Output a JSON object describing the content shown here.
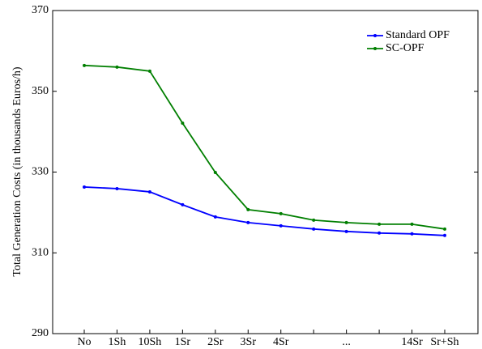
{
  "chart_data": {
    "type": "line",
    "y_label": "Total Generation Costs (in thousands Euros/h)",
    "categories": [
      "No",
      "1Sh",
      "10Sh",
      "1Sr",
      "2Sr",
      "3Sr",
      "4Sr",
      null,
      "...",
      null,
      "14Sr",
      "Sr+Sh"
    ],
    "series": [
      {
        "name": "Standard OPF",
        "color": "#0000ff",
        "values": [
          326.3,
          325.9,
          325.1,
          321.9,
          318.9,
          317.5,
          316.7,
          315.9,
          315.3,
          314.9,
          314.7,
          314.3
        ]
      },
      {
        "name": "SC-OPF",
        "color": "#007f00",
        "values": [
          356.4,
          356.0,
          355.0,
          342.1,
          329.9,
          320.7,
          319.7,
          318.1,
          317.5,
          317.1,
          317.1,
          315.9
        ]
      }
    ],
    "ylim": [
      290,
      370
    ],
    "yticks": [
      290,
      310,
      330,
      350,
      370
    ],
    "legend": "upper right"
  }
}
